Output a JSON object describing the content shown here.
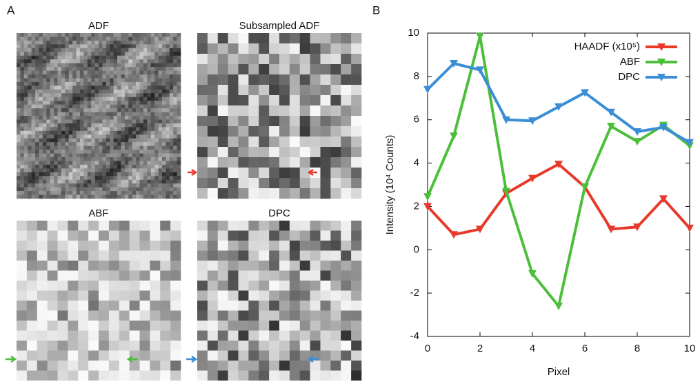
{
  "panel_a": {
    "label": "A",
    "images": [
      {
        "title": "ADF"
      },
      {
        "title": "Subsampled ADF"
      },
      {
        "title": "ABF"
      },
      {
        "title": "DPC"
      }
    ]
  },
  "chart_data": {
    "type": "line",
    "panel_label": "B",
    "x_label": "Pixel",
    "y_label": "Intensity (10⁴ Counts)",
    "x": [
      0,
      1,
      2,
      3,
      4,
      5,
      6,
      7,
      8,
      9,
      10
    ],
    "series": [
      {
        "name": "HAADF (x10⁵)",
        "color": "#e8392a",
        "values": [
          2.0,
          0.7,
          0.95,
          2.6,
          3.3,
          3.95,
          2.9,
          0.95,
          1.05,
          2.35,
          1.0
        ]
      },
      {
        "name": "ABF",
        "color": "#4cbf3a",
        "values": [
          2.45,
          5.25,
          9.85,
          2.7,
          -1.1,
          -2.6,
          2.9,
          5.7,
          5.0,
          5.75,
          4.8
        ]
      },
      {
        "name": "DPC",
        "color": "#3b8ed6",
        "values": [
          7.4,
          8.6,
          8.3,
          6.0,
          5.95,
          6.6,
          7.25,
          6.35,
          5.45,
          5.65,
          4.95
        ]
      }
    ],
    "xlim": [
      0,
      10
    ],
    "xticks": [
      0,
      2,
      4,
      6,
      8,
      10
    ],
    "ylim": [
      -4,
      10
    ],
    "yticks": [
      -4,
      -2,
      0,
      2,
      4,
      6,
      8,
      10
    ],
    "legend": "top-right"
  }
}
